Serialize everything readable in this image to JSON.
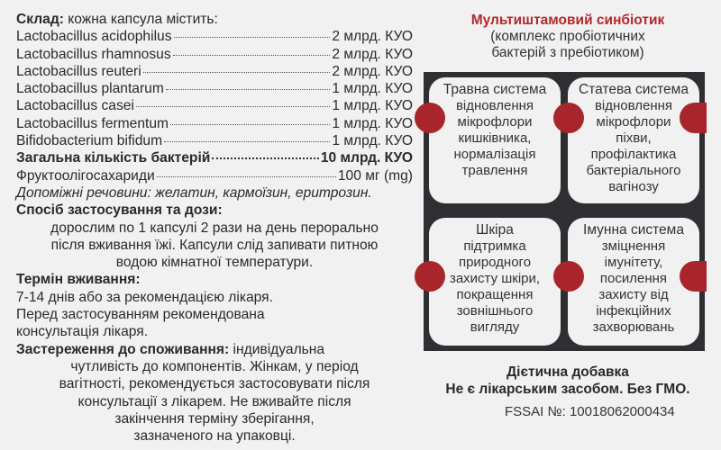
{
  "composition": {
    "heading": "Склад:",
    "intro": " кожна капсула містить:",
    "strains": [
      {
        "name": "Lactobacillus acidophilus",
        "value": "2 млрд. КУО"
      },
      {
        "name": "Lactobacillus rhamnosus",
        "value": "2 млрд. КУО"
      },
      {
        "name": "Lactobacillus reuteri",
        "value": "2 млрд. КУО"
      },
      {
        "name": "Lactobacillus plantarum",
        "value": "1 млрд. КУО"
      },
      {
        "name": "Lactobacillus casei",
        "value": "1 млрд. КУО"
      },
      {
        "name": "Lactobacillus fermentum",
        "value": "1 млрд. КУО"
      },
      {
        "name": "Bifidobacterium bifidum",
        "value": "1 млрд. КУО"
      }
    ],
    "total_label": "Загальна кількість бактерій",
    "total_value": "10 млрд. КУО",
    "fos_label": "Фруктоолігосахариди",
    "fos_value": "100 мг (mg)",
    "excipients": "Допоміжні речовини: желатин, кармоїзин, еритрозин."
  },
  "usage": {
    "heading": "Спосіб застосування та дози:",
    "lines": [
      "дорослим по 1 капсулі 2 рази на день перорально",
      "після вживання їжі. Капсули слід запивати питною",
      "водою кімнатної температури."
    ]
  },
  "term": {
    "heading": "Термін вживання:",
    "lines": [
      "7-14 днів або за рекомендацією лікаря.",
      "Перед застосуванням рекомендована",
      "консультація лікаря."
    ]
  },
  "warnings": {
    "heading": "Застереження до споживання:",
    "first": " індивідуальна",
    "lines": [
      "чутливість до компонентів. Жінкам, у період",
      "вагітності, рекомендується застосовувати після",
      "консультації з лікарем. Не вживайте після",
      "закінчення терміну зберігання,",
      "зазначеного на упаковці."
    ]
  },
  "right": {
    "title": "Мультиштамовий синбіотик",
    "subtitle": [
      "(комплекс пробіотичних",
      "бактерій з пребіотиком)"
    ],
    "cards": [
      {
        "heading": "Травна система",
        "lines": [
          "відновлення",
          "мікрофлори",
          "кишківника,",
          "нормалізація",
          "травлення"
        ]
      },
      {
        "heading": "Статева система",
        "lines": [
          "відновлення",
          "мікрофлори",
          "піхви,",
          "профілактика",
          "бактеріального",
          "вагінозу"
        ]
      },
      {
        "heading": "Шкіра",
        "lines": [
          "підтримка",
          "природного",
          "захисту шкіри,",
          "покращення",
          "зовнішнього",
          "вигляду"
        ]
      },
      {
        "heading": "Імунна система",
        "lines": [
          "зміцнення",
          "імунітету,",
          "посилення",
          "захисту від",
          "інфекційних",
          "захворювань"
        ]
      }
    ],
    "footer": [
      "Дієтична добавка",
      "Не є лікарським засобом. Без ГМО."
    ],
    "fssai": "FSSAI №: 10018062000434"
  },
  "colors": {
    "accent": "#b3282d",
    "panel": "#2f2f33",
    "background": "#f1f1f1"
  }
}
